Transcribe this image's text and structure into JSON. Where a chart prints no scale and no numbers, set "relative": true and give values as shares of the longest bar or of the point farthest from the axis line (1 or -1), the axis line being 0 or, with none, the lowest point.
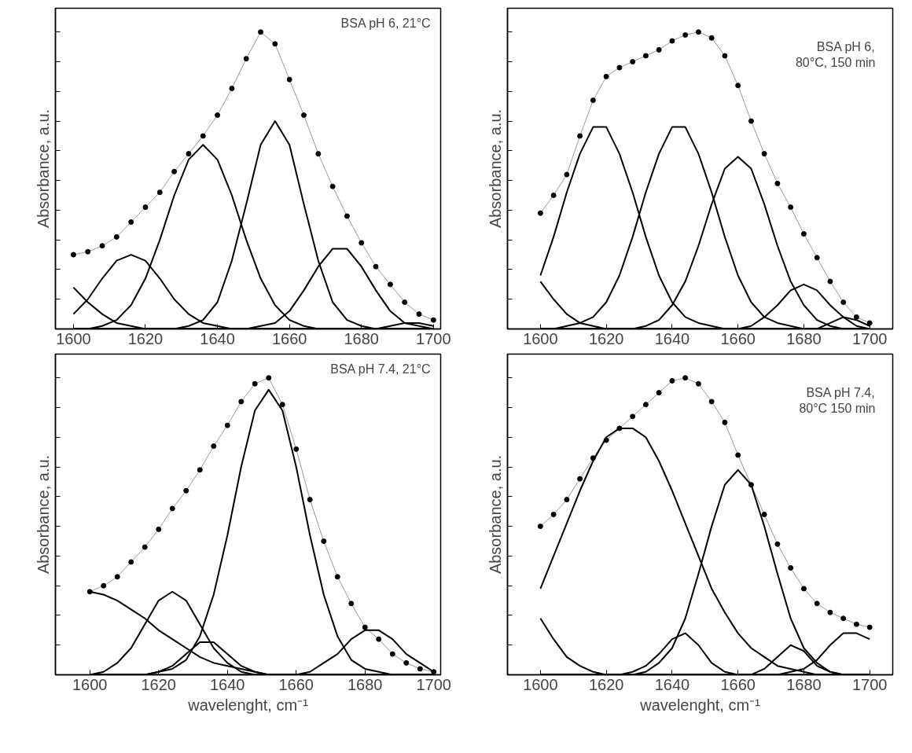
{
  "chart_data": [
    {
      "type": "line",
      "relative": true,
      "ylabel": "Absorbance, a.u.",
      "annotations": [
        "BSA pH 6, 21°C"
      ],
      "xlim": [
        1595,
        1702
      ],
      "xticks": [
        1600,
        1620,
        1640,
        1660,
        1680,
        1700
      ],
      "tick_labels": "x",
      "grid": false,
      "x": [
        1600,
        1604,
        1608,
        1612,
        1616,
        1620,
        1624,
        1628,
        1632,
        1636,
        1640,
        1644,
        1648,
        1652,
        1656,
        1660,
        1664,
        1668,
        1672,
        1676,
        1680,
        1684,
        1688,
        1692,
        1696,
        1700
      ],
      "series": [
        {
          "color": "#999999",
          "line_style": "solid",
          "marker": "none",
          "values": [
            0.25,
            0.26,
            0.28,
            0.31,
            0.36,
            0.41,
            0.46,
            0.53,
            0.59,
            0.65,
            0.72,
            0.81,
            0.91,
            1.0,
            0.96,
            0.84,
            0.72,
            0.59,
            0.48,
            0.38,
            0.29,
            0.21,
            0.15,
            0.09,
            0.05,
            0.03
          ]
        },
        {
          "type": "scatter",
          "color": "#000000",
          "marker": "circle",
          "values": [
            0.25,
            0.26,
            0.28,
            0.31,
            0.36,
            0.41,
            0.46,
            0.53,
            0.59,
            0.65,
            0.72,
            0.81,
            0.91,
            1.0,
            0.96,
            0.84,
            0.72,
            0.59,
            0.48,
            0.38,
            0.29,
            0.21,
            0.15,
            0.09,
            0.05,
            0.03
          ]
        },
        {
          "color": "#000000",
          "line_style": "solid",
          "marker": "none",
          "values": [
            0.05,
            0.1,
            0.17,
            0.23,
            0.25,
            0.23,
            0.17,
            0.1,
            0.05,
            0.02,
            0.01,
            0,
            0,
            0,
            0,
            0,
            0,
            0,
            0,
            0,
            0,
            0,
            0,
            0,
            0,
            0
          ]
        },
        {
          "color": "#000000",
          "line_style": "solid",
          "marker": "none",
          "values": [
            0,
            0,
            0.01,
            0.03,
            0.08,
            0.17,
            0.3,
            0.45,
            0.57,
            0.62,
            0.57,
            0.45,
            0.3,
            0.17,
            0.08,
            0.03,
            0.01,
            0,
            0,
            0,
            0,
            0,
            0,
            0,
            0,
            0
          ]
        },
        {
          "color": "#000000",
          "line_style": "solid",
          "marker": "none",
          "values": [
            0,
            0,
            0,
            0,
            0,
            0,
            0,
            0,
            0.01,
            0.03,
            0.09,
            0.23,
            0.42,
            0.62,
            0.7,
            0.62,
            0.42,
            0.23,
            0.09,
            0.03,
            0.01,
            0,
            0,
            0,
            0,
            0
          ]
        },
        {
          "color": "#000000",
          "line_style": "solid",
          "marker": "none",
          "values": [
            0,
            0,
            0,
            0,
            0,
            0,
            0,
            0,
            0,
            0,
            0,
            0,
            0,
            0.01,
            0.02,
            0.06,
            0.13,
            0.21,
            0.27,
            0.27,
            0.21,
            0.13,
            0.06,
            0.02,
            0.01,
            0
          ]
        },
        {
          "color": "#000000",
          "line_style": "solid",
          "marker": "none",
          "values": [
            0.14,
            0.09,
            0.05,
            0.02,
            0.01,
            0,
            0,
            0,
            0,
            0,
            0,
            0,
            0,
            0,
            0,
            0,
            0,
            0,
            0,
            0,
            0,
            0,
            0,
            0,
            0,
            0
          ]
        },
        {
          "color": "#000000",
          "line_style": "solid",
          "marker": "none",
          "values": [
            0,
            0,
            0,
            0,
            0,
            0,
            0,
            0,
            0,
            0,
            0,
            0,
            0,
            0,
            0,
            0,
            0,
            0,
            0,
            0,
            0,
            0,
            0.01,
            0.02,
            0.02,
            0.01
          ]
        }
      ]
    },
    {
      "type": "line",
      "relative": true,
      "ylabel": "Absorbance, a.u.",
      "annotations": [
        "BSA pH 6,\n80°C, 150 min"
      ],
      "xlim": [
        1590,
        1707
      ],
      "xticks": [
        1600,
        1620,
        1640,
        1660,
        1680,
        1700
      ],
      "tick_labels": "x",
      "grid": false,
      "x": [
        1600,
        1604,
        1608,
        1612,
        1616,
        1620,
        1624,
        1628,
        1632,
        1636,
        1640,
        1644,
        1648,
        1652,
        1656,
        1660,
        1664,
        1668,
        1672,
        1676,
        1680,
        1684,
        1688,
        1692,
        1696,
        1700
      ],
      "series": [
        {
          "color": "#999999",
          "line_style": "solid",
          "marker": "none",
          "values": [
            0.39,
            0.45,
            0.52,
            0.65,
            0.77,
            0.85,
            0.88,
            0.9,
            0.92,
            0.94,
            0.97,
            0.99,
            1.0,
            0.98,
            0.92,
            0.82,
            0.7,
            0.59,
            0.49,
            0.41,
            0.32,
            0.24,
            0.16,
            0.09,
            0.04,
            0.02
          ]
        },
        {
          "type": "scatter",
          "color": "#000000",
          "marker": "circle",
          "values": [
            0.39,
            0.45,
            0.52,
            0.65,
            0.77,
            0.85,
            0.88,
            0.9,
            0.92,
            0.94,
            0.97,
            0.99,
            1.0,
            0.98,
            0.92,
            0.82,
            0.7,
            0.59,
            0.49,
            0.41,
            0.32,
            0.24,
            0.16,
            0.09,
            0.04,
            0.02
          ]
        },
        {
          "color": "#000000",
          "line_style": "solid",
          "marker": "none",
          "values": [
            0.18,
            0.31,
            0.46,
            0.59,
            0.68,
            0.68,
            0.59,
            0.46,
            0.31,
            0.18,
            0.09,
            0.04,
            0.02,
            0.01,
            0,
            0,
            0,
            0,
            0,
            0,
            0,
            0,
            0,
            0,
            0,
            0
          ]
        },
        {
          "color": "#000000",
          "line_style": "solid",
          "marker": "none",
          "values": [
            0,
            0,
            0.01,
            0.02,
            0.04,
            0.09,
            0.18,
            0.31,
            0.46,
            0.59,
            0.68,
            0.68,
            0.59,
            0.46,
            0.31,
            0.18,
            0.09,
            0.04,
            0.02,
            0.01,
            0,
            0,
            0,
            0,
            0,
            0
          ]
        },
        {
          "color": "#000000",
          "line_style": "solid",
          "marker": "none",
          "values": [
            0,
            0,
            0,
            0,
            0,
            0,
            0,
            0,
            0.01,
            0.03,
            0.08,
            0.16,
            0.28,
            0.42,
            0.54,
            0.58,
            0.54,
            0.42,
            0.28,
            0.16,
            0.08,
            0.03,
            0.01,
            0,
            0,
            0
          ]
        },
        {
          "color": "#000000",
          "line_style": "solid",
          "marker": "none",
          "values": [
            0,
            0,
            0,
            0,
            0,
            0,
            0,
            0,
            0,
            0,
            0,
            0,
            0,
            0,
            0,
            0,
            0.01,
            0.04,
            0.08,
            0.13,
            0.15,
            0.13,
            0.08,
            0.04,
            0.01,
            0
          ]
        },
        {
          "color": "#000000",
          "line_style": "solid",
          "marker": "none",
          "values": [
            0.16,
            0.1,
            0.05,
            0.02,
            0.01,
            0,
            0,
            0,
            0,
            0,
            0,
            0,
            0,
            0,
            0,
            0,
            0,
            0,
            0,
            0,
            0,
            0,
            0,
            0,
            0,
            0
          ]
        },
        {
          "color": "#000000",
          "line_style": "solid",
          "marker": "none",
          "values": [
            0,
            0,
            0,
            0,
            0,
            0,
            0,
            0,
            0,
            0,
            0,
            0,
            0,
            0,
            0,
            0,
            0,
            0,
            0,
            0,
            0,
            0,
            0.02,
            0.04,
            0.03,
            0.01
          ]
        }
      ]
    },
    {
      "type": "line",
      "relative": true,
      "ylabel": "Absorbance, a.u.",
      "xlabel": "wavelenght, cm⁻¹",
      "annotations": [
        "BSA pH 7.4, 21°C"
      ],
      "xlim": [
        1590,
        1702
      ],
      "xticks": [
        1600,
        1620,
        1640,
        1660,
        1680,
        1700
      ],
      "tick_labels": "x",
      "grid": false,
      "x": [
        1600,
        1604,
        1608,
        1612,
        1616,
        1620,
        1624,
        1628,
        1632,
        1636,
        1640,
        1644,
        1648,
        1652,
        1656,
        1660,
        1664,
        1668,
        1672,
        1676,
        1680,
        1684,
        1688,
        1692,
        1696,
        1700
      ],
      "series": [
        {
          "color": "#999999",
          "line_style": "solid",
          "marker": "none",
          "values": [
            0.28,
            0.3,
            0.33,
            0.38,
            0.43,
            0.49,
            0.56,
            0.62,
            0.69,
            0.77,
            0.84,
            0.92,
            0.98,
            1.0,
            0.91,
            0.76,
            0.59,
            0.45,
            0.33,
            0.24,
            0.16,
            0.12,
            0.07,
            0.04,
            0.02,
            0.01
          ]
        },
        {
          "type": "scatter",
          "color": "#000000",
          "marker": "circle",
          "values": [
            0.28,
            0.3,
            0.33,
            0.38,
            0.43,
            0.49,
            0.56,
            0.62,
            0.69,
            0.77,
            0.84,
            0.92,
            0.98,
            1.0,
            0.91,
            0.76,
            0.59,
            0.45,
            0.33,
            0.24,
            0.16,
            0.12,
            0.07,
            0.04,
            0.02,
            0.01
          ]
        },
        {
          "color": "#000000",
          "line_style": "solid",
          "marker": "none",
          "values": [
            0,
            0,
            0,
            0,
            0,
            0.01,
            0.02,
            0.05,
            0.13,
            0.27,
            0.47,
            0.7,
            0.89,
            0.96,
            0.89,
            0.7,
            0.47,
            0.27,
            0.13,
            0.05,
            0.02,
            0.01,
            0,
            0,
            0,
            0
          ]
        },
        {
          "color": "#000000",
          "line_style": "solid",
          "marker": "none",
          "values": [
            0,
            0.01,
            0.04,
            0.09,
            0.17,
            0.25,
            0.28,
            0.25,
            0.17,
            0.09,
            0.04,
            0.01,
            0,
            0,
            0,
            0,
            0,
            0,
            0,
            0,
            0,
            0,
            0,
            0,
            0,
            0
          ]
        },
        {
          "color": "#000000",
          "line_style": "solid",
          "marker": "none",
          "values": [
            0,
            0,
            0,
            0,
            0,
            0,
            0,
            0,
            0,
            0,
            0,
            0,
            0,
            0,
            0,
            0,
            0.01,
            0.04,
            0.07,
            0.12,
            0.15,
            0.15,
            0.12,
            0.07,
            0.04,
            0.01
          ]
        },
        {
          "color": "#000000",
          "line_style": "solid",
          "marker": "none",
          "values": [
            0,
            0,
            0,
            0,
            0,
            0.01,
            0.03,
            0.07,
            0.11,
            0.11,
            0.07,
            0.03,
            0.01,
            0,
            0,
            0,
            0,
            0,
            0,
            0,
            0,
            0,
            0,
            0,
            0,
            0
          ]
        },
        {
          "color": "#000000",
          "line_style": "solid",
          "marker": "none",
          "values": [
            0.28,
            0.27,
            0.25,
            0.22,
            0.19,
            0.15,
            0.12,
            0.09,
            0.06,
            0.04,
            0.03,
            0.02,
            0.01,
            0,
            0,
            0,
            0,
            0,
            0,
            0,
            0,
            0,
            0,
            0,
            0,
            0
          ]
        }
      ]
    },
    {
      "type": "line",
      "relative": true,
      "ylabel": "Absorbance, a.u.",
      "xlabel": "wavelenght, cm⁻¹",
      "annotations": [
        "BSA pH 7.4,\n80°C 150 min"
      ],
      "xlim": [
        1590,
        1707
      ],
      "xticks": [
        1600,
        1620,
        1640,
        1660,
        1680,
        1700
      ],
      "tick_labels": "x",
      "grid": false,
      "x": [
        1600,
        1604,
        1608,
        1612,
        1616,
        1620,
        1624,
        1628,
        1632,
        1636,
        1640,
        1644,
        1648,
        1652,
        1656,
        1660,
        1664,
        1668,
        1672,
        1676,
        1680,
        1684,
        1688,
        1692,
        1696,
        1700
      ],
      "series": [
        {
          "color": "#999999",
          "line_style": "solid",
          "marker": "none",
          "values": [
            0.5,
            0.54,
            0.59,
            0.66,
            0.73,
            0.79,
            0.83,
            0.87,
            0.91,
            0.95,
            0.99,
            1.0,
            0.98,
            0.92,
            0.85,
            0.74,
            0.64,
            0.54,
            0.44,
            0.36,
            0.29,
            0.24,
            0.21,
            0.19,
            0.17,
            0.16
          ]
        },
        {
          "type": "scatter",
          "color": "#000000",
          "marker": "circle",
          "values": [
            0.5,
            0.54,
            0.59,
            0.66,
            0.73,
            0.79,
            0.83,
            0.87,
            0.91,
            0.95,
            0.99,
            1.0,
            0.98,
            0.92,
            0.85,
            0.74,
            0.64,
            0.54,
            0.44,
            0.36,
            0.29,
            0.24,
            0.21,
            0.19,
            0.17,
            0.16
          ]
        },
        {
          "color": "#000000",
          "line_style": "solid",
          "marker": "none",
          "values": [
            0.29,
            0.4,
            0.51,
            0.62,
            0.72,
            0.8,
            0.83,
            0.83,
            0.8,
            0.72,
            0.62,
            0.51,
            0.4,
            0.29,
            0.21,
            0.14,
            0.09,
            0.06,
            0.03,
            0.02,
            0.01,
            0,
            0,
            0,
            0,
            0
          ]
        },
        {
          "color": "#000000",
          "line_style": "solid",
          "marker": "none",
          "values": [
            0,
            0,
            0,
            0,
            0,
            0,
            0,
            0,
            0.01,
            0.04,
            0.09,
            0.19,
            0.34,
            0.5,
            0.64,
            0.69,
            0.64,
            0.5,
            0.34,
            0.19,
            0.09,
            0.04,
            0.01,
            0,
            0,
            0
          ]
        },
        {
          "color": "#000000",
          "line_style": "solid",
          "marker": "none",
          "values": [
            0,
            0,
            0,
            0,
            0,
            0,
            0,
            0.01,
            0.03,
            0.07,
            0.12,
            0.14,
            0.1,
            0.04,
            0.01,
            0,
            0,
            0,
            0,
            0,
            0,
            0,
            0,
            0,
            0,
            0
          ]
        },
        {
          "color": "#000000",
          "line_style": "solid",
          "marker": "none",
          "values": [
            0,
            0,
            0,
            0,
            0,
            0,
            0,
            0,
            0,
            0,
            0,
            0,
            0,
            0,
            0,
            0,
            0,
            0.02,
            0.06,
            0.1,
            0.08,
            0.03,
            0.01,
            0,
            0,
            0
          ]
        },
        {
          "color": "#000000",
          "line_style": "solid",
          "marker": "none",
          "values": [
            0,
            0,
            0,
            0,
            0,
            0,
            0,
            0,
            0,
            0,
            0,
            0,
            0,
            0,
            0,
            0,
            0,
            0,
            0,
            0.01,
            0.02,
            0.05,
            0.1,
            0.14,
            0.14,
            0.12
          ]
        },
        {
          "color": "#000000",
          "line_style": "solid",
          "marker": "none",
          "values": [
            0.19,
            0.12,
            0.06,
            0.03,
            0.01,
            0,
            0,
            0,
            0,
            0,
            0,
            0,
            0,
            0,
            0,
            0,
            0,
            0,
            0,
            0,
            0,
            0,
            0,
            0,
            0,
            0
          ]
        }
      ]
    }
  ]
}
